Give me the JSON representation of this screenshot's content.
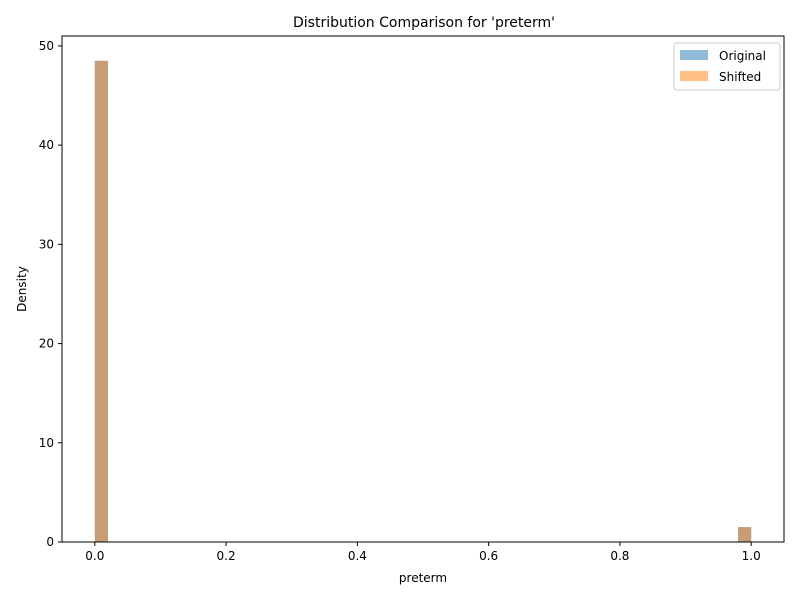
{
  "chart_data": {
    "type": "bar",
    "title": "Distribution Comparison for 'preterm'",
    "xlabel": "preterm",
    "ylabel": "Density",
    "xlim": [
      -0.05,
      1.05
    ],
    "ylim": [
      0,
      51
    ],
    "xticks": [
      "0.0",
      "0.2",
      "0.4",
      "0.6",
      "0.8",
      "1.0"
    ],
    "yticks": [
      "0",
      "10",
      "20",
      "30",
      "40",
      "50"
    ],
    "grid": false,
    "legend": "top-right",
    "bin_width": 0.02,
    "series": [
      {
        "name": "Original",
        "color": "#1f77b4",
        "bins": [
          {
            "x": 0.0,
            "density": 48.5
          },
          {
            "x": 0.98,
            "density": 1.5
          }
        ]
      },
      {
        "name": "Shifted",
        "color": "#ff7f0e",
        "bins": [
          {
            "x": 0.0,
            "density": 48.5
          },
          {
            "x": 0.98,
            "density": 1.5
          }
        ]
      }
    ]
  }
}
